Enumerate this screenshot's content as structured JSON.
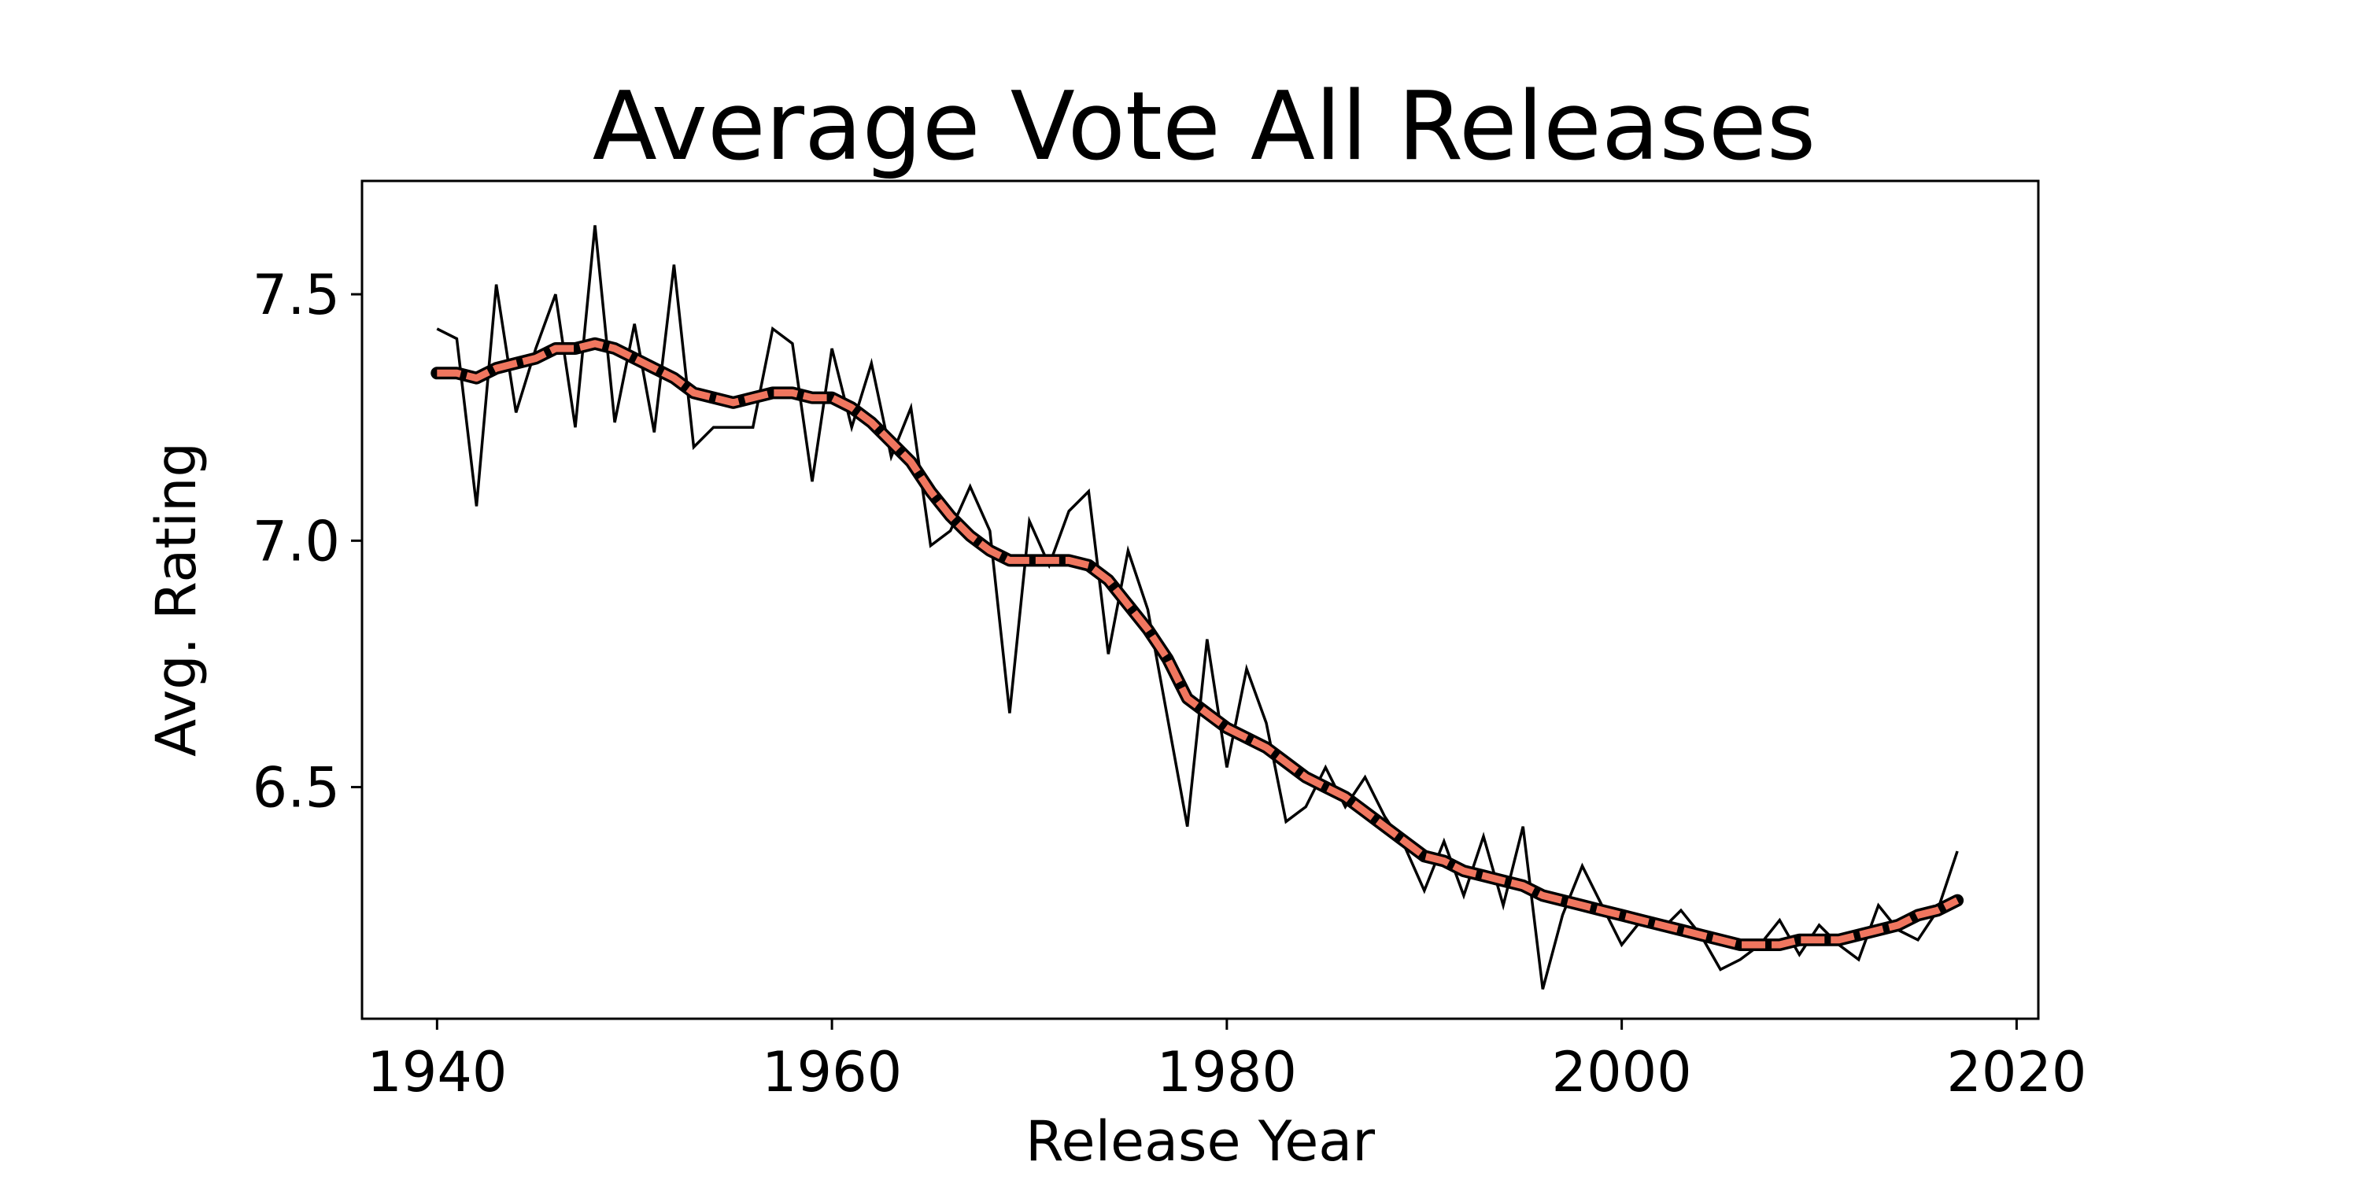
{
  "chart_data": {
    "type": "line",
    "title": "Average Vote All Releases",
    "xlabel": "Release Year",
    "ylabel": "Avg. Rating",
    "xlim": [
      1936.2,
      2021.1
    ],
    "ylim": [
      6.03,
      7.73
    ],
    "xticks": [
      1940,
      1960,
      1980,
      2000,
      2020
    ],
    "xtick_labels": [
      "1940",
      "1960",
      "1980",
      "2000",
      "2020"
    ],
    "yticks": [
      6.5,
      7.0,
      7.5
    ],
    "ytick_labels": [
      "6.5",
      "7.0",
      "7.5"
    ],
    "grid": false,
    "legend": false,
    "x": [
      1940,
      1941,
      1942,
      1943,
      1944,
      1945,
      1946,
      1947,
      1948,
      1949,
      1950,
      1951,
      1952,
      1953,
      1954,
      1955,
      1956,
      1957,
      1958,
      1959,
      1960,
      1961,
      1962,
      1963,
      1964,
      1965,
      1966,
      1967,
      1968,
      1969,
      1970,
      1971,
      1972,
      1973,
      1974,
      1975,
      1976,
      1977,
      1978,
      1979,
      1980,
      1981,
      1982,
      1983,
      1984,
      1985,
      1986,
      1987,
      1988,
      1989,
      1990,
      1991,
      1992,
      1993,
      1994,
      1995,
      1996,
      1997,
      1998,
      1999,
      2000,
      2001,
      2002,
      2003,
      2004,
      2005,
      2006,
      2007,
      2008,
      2009,
      2010,
      2011,
      2012,
      2013,
      2014,
      2015,
      2016,
      2017
    ],
    "series": [
      {
        "style": "thin-black",
        "color": "#000000",
        "values": [
          7.43,
          7.41,
          7.07,
          7.52,
          7.26,
          7.39,
          7.5,
          7.23,
          7.64,
          7.24,
          7.44,
          7.22,
          7.56,
          7.19,
          7.23,
          7.23,
          7.23,
          7.43,
          7.4,
          7.12,
          7.39,
          7.23,
          7.36,
          7.17,
          7.27,
          6.99,
          7.02,
          7.11,
          7.02,
          6.65,
          7.04,
          6.95,
          7.06,
          7.1,
          6.77,
          6.98,
          6.86,
          6.64,
          6.42,
          6.8,
          6.54,
          6.74,
          6.63,
          6.43,
          6.46,
          6.54,
          6.46,
          6.52,
          6.44,
          6.38,
          6.29,
          6.39,
          6.28,
          6.4,
          6.26,
          6.42,
          6.09,
          6.24,
          6.34,
          6.26,
          6.18,
          6.23,
          6.21,
          6.25,
          6.2,
          6.13,
          6.15,
          6.18,
          6.23,
          6.16,
          6.22,
          6.18,
          6.15,
          6.26,
          6.21,
          6.19,
          6.25,
          6.37
        ]
      },
      {
        "style": "smoothed-dashed",
        "color": "#f0765f",
        "edge_color": "#000000",
        "values": [
          7.34,
          7.34,
          7.33,
          7.35,
          7.36,
          7.37,
          7.39,
          7.39,
          7.4,
          7.39,
          7.37,
          7.35,
          7.33,
          7.3,
          7.29,
          7.28,
          7.29,
          7.3,
          7.3,
          7.29,
          7.29,
          7.27,
          7.24,
          7.2,
          7.16,
          7.1,
          7.05,
          7.01,
          6.98,
          6.96,
          6.96,
          6.96,
          6.96,
          6.95,
          6.92,
          6.87,
          6.82,
          6.76,
          6.68,
          6.65,
          6.62,
          6.6,
          6.58,
          6.55,
          6.52,
          6.5,
          6.48,
          6.45,
          6.42,
          6.39,
          6.36,
          6.35,
          6.33,
          6.32,
          6.31,
          6.3,
          6.28,
          6.27,
          6.26,
          6.25,
          6.24,
          6.23,
          6.22,
          6.21,
          6.2,
          6.19,
          6.18,
          6.18,
          6.18,
          6.19,
          6.19,
          6.19,
          6.2,
          6.21,
          6.22,
          6.24,
          6.25,
          6.27
        ]
      }
    ]
  }
}
